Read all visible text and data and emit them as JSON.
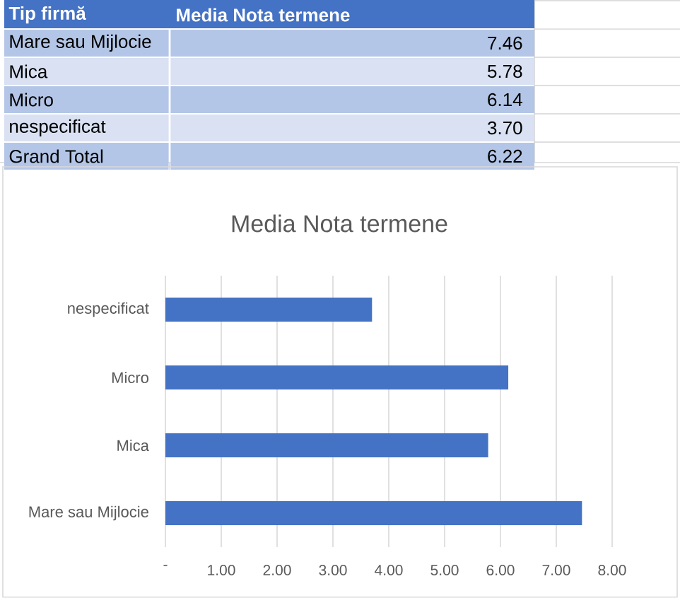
{
  "chart_data": {
    "type": "bar",
    "orientation": "horizontal",
    "title": "Media Nota termene",
    "categories": [
      "nespecificat",
      "Micro",
      "Mica",
      "Mare sau Mijlocie"
    ],
    "values": [
      3.7,
      6.14,
      5.78,
      7.46
    ],
    "color": "#4472c4",
    "xlim": [
      0,
      8
    ],
    "xticks": [
      {
        "value": 0,
        "label": "-"
      },
      {
        "value": 1,
        "label": "1.00"
      },
      {
        "value": 2,
        "label": "2.00"
      },
      {
        "value": 3,
        "label": "3.00"
      },
      {
        "value": 4,
        "label": "4.00"
      },
      {
        "value": 5,
        "label": "5.00"
      },
      {
        "value": 6,
        "label": "6.00"
      },
      {
        "value": 7,
        "label": "7.00"
      },
      {
        "value": 8,
        "label": "8.00"
      }
    ],
    "grid": "x",
    "annotations": [
      "Tip firmă",
      "Media Nota termene",
      "7.46",
      "5.78",
      "6.14",
      "3.70",
      "Grand Total",
      "6.22"
    ]
  }
}
